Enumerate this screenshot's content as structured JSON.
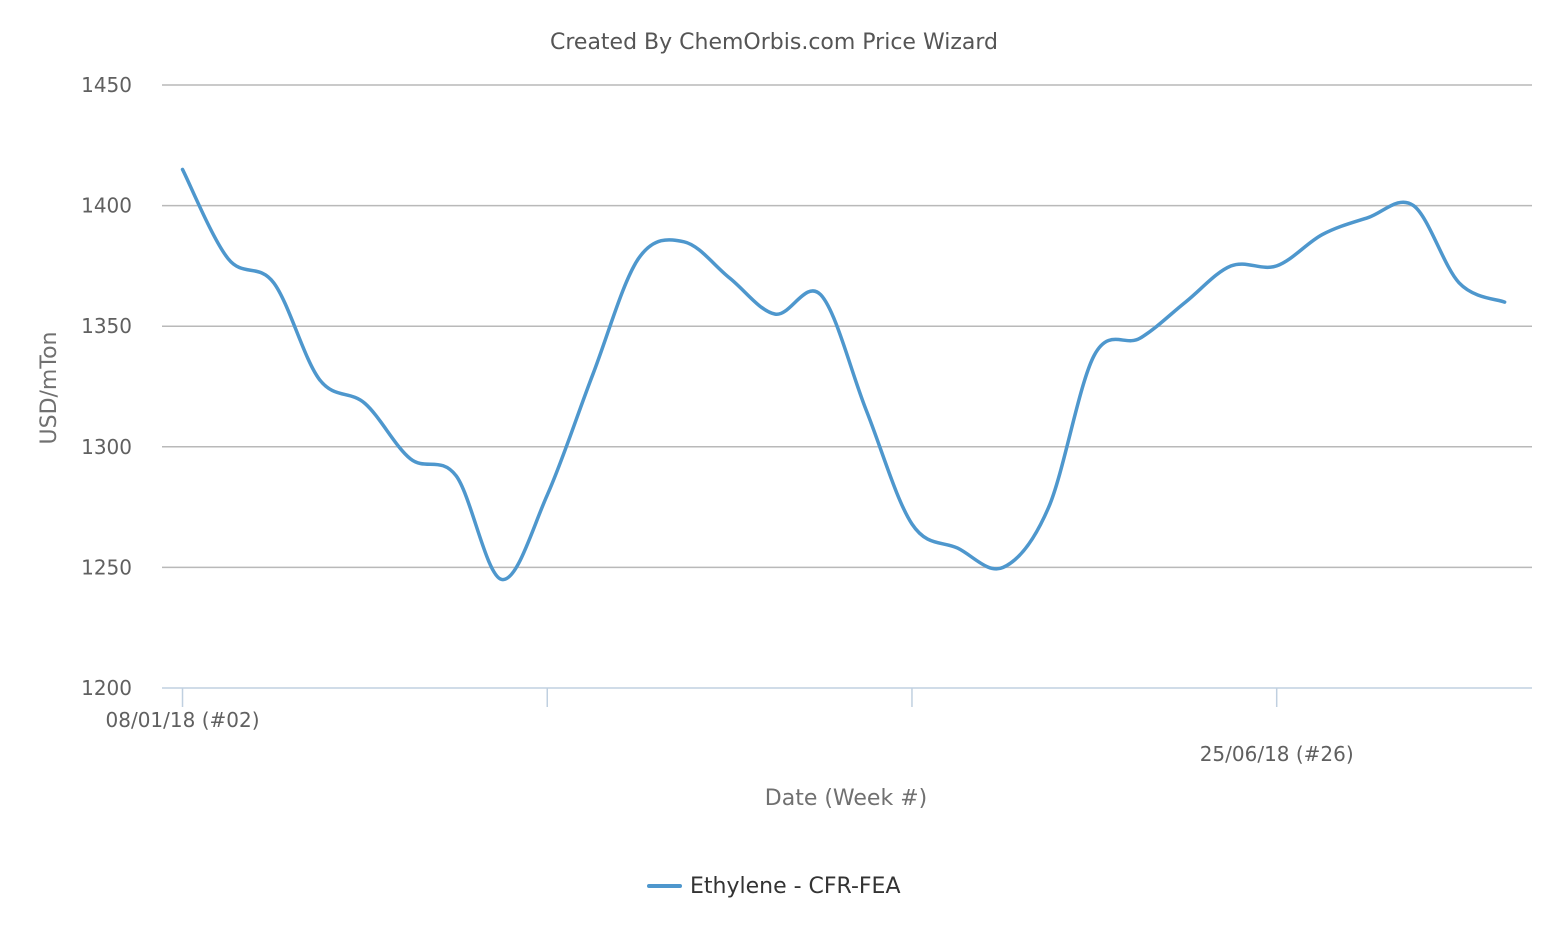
{
  "chart_data": {
    "type": "line",
    "title": "Created By ChemOrbis.com Price Wizard",
    "xlabel": "Date (Week #)",
    "ylabel": "USD/mTon",
    "ylim": [
      1200,
      1450
    ],
    "yticks": [
      1200,
      1250,
      1300,
      1350,
      1400,
      1450
    ],
    "grid": true,
    "legend_position": "bottom-center",
    "x_tick_labels": [
      {
        "week": 2,
        "label": "08/01/18 (#02)"
      },
      {
        "week": 26,
        "label": "25/06/18 (#26)"
      }
    ],
    "x_tick_marks_week": [
      2,
      10,
      18,
      26
    ],
    "x_range_week": [
      1.55,
      31.6
    ],
    "colors": {
      "series": "#4e97cd",
      "grid": "#b9b9b9",
      "axis": "#c0d0e0"
    },
    "series": [
      {
        "name": "Ethylene - CFR-FEA",
        "x": [
          2,
          3,
          4,
          5,
          6,
          7,
          8,
          9,
          10,
          11,
          12,
          13,
          14,
          15,
          16,
          17,
          18,
          19,
          20,
          21,
          22,
          23,
          24,
          25,
          26,
          27,
          28,
          29,
          30,
          31
        ],
        "values": [
          1415,
          1378,
          1368,
          1328,
          1318,
          1295,
          1288,
          1245,
          1280,
          1330,
          1378,
          1385,
          1370,
          1355,
          1363,
          1315,
          1268,
          1258,
          1250,
          1275,
          1338,
          1345,
          1360,
          1375,
          1375,
          1388,
          1395,
          1400,
          1368,
          1360
        ]
      }
    ]
  }
}
